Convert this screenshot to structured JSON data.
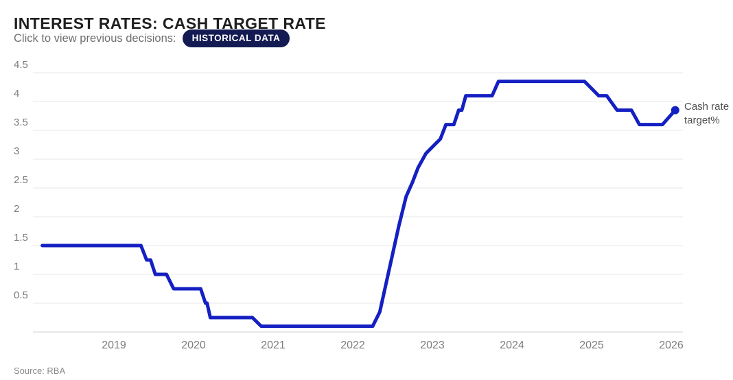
{
  "header": {
    "title": "INTEREST RATES: CASH TARGET RATE",
    "subtitle": "Click to view previous decisions:",
    "button_label": "HISTORICAL DATA"
  },
  "footer": {
    "source": "Source: RBA"
  },
  "colors": {
    "line": "#1520c2",
    "pill_bg": "#131b52",
    "grid": "#e7e7e7",
    "axis": "#cfcfcf",
    "tick_text": "#7d7d7d"
  },
  "chart_data": {
    "type": "line",
    "title": "INTEREST RATES: CASH TARGET RATE",
    "xlabel": "",
    "ylabel": "",
    "x_tick_labels": [
      "2019",
      "2020",
      "2021",
      "2022",
      "2023",
      "2024",
      "2025",
      "2026"
    ],
    "y_tick_labels": [
      "4.5",
      "4",
      "3.5",
      "3",
      "2.5",
      "2",
      "1.5",
      "1",
      "0.5"
    ],
    "xlim": [
      2018.05,
      2026.3
    ],
    "ylim": [
      0,
      4.7
    ],
    "grid": "horizontal-only",
    "legend_position": "right-of-last-point",
    "series": [
      {
        "name": "Cash rate target%",
        "color": "#1520c2",
        "points": [
          [
            2018.1,
            1.5
          ],
          [
            2019.34,
            1.5
          ],
          [
            2019.41,
            1.25
          ],
          [
            2019.46,
            1.25
          ],
          [
            2019.52,
            1.0
          ],
          [
            2019.66,
            1.0
          ],
          [
            2019.75,
            0.75
          ],
          [
            2020.09,
            0.75
          ],
          [
            2020.15,
            0.5
          ],
          [
            2020.17,
            0.5
          ],
          [
            2020.21,
            0.25
          ],
          [
            2020.74,
            0.25
          ],
          [
            2020.85,
            0.1
          ],
          [
            2022.25,
            0.1
          ],
          [
            2022.34,
            0.35
          ],
          [
            2022.42,
            0.85
          ],
          [
            2022.5,
            1.35
          ],
          [
            2022.58,
            1.85
          ],
          [
            2022.67,
            2.35
          ],
          [
            2022.75,
            2.6
          ],
          [
            2022.82,
            2.85
          ],
          [
            2022.92,
            3.1
          ],
          [
            2023.1,
            3.35
          ],
          [
            2023.17,
            3.6
          ],
          [
            2023.27,
            3.6
          ],
          [
            2023.33,
            3.85
          ],
          [
            2023.37,
            3.85
          ],
          [
            2023.42,
            4.1
          ],
          [
            2023.75,
            4.1
          ],
          [
            2023.83,
            4.35
          ],
          [
            2024.91,
            4.35
          ],
          [
            2025.09,
            4.1
          ],
          [
            2025.19,
            4.1
          ],
          [
            2025.32,
            3.85
          ],
          [
            2025.5,
            3.85
          ],
          [
            2025.6,
            3.6
          ],
          [
            2025.89,
            3.6
          ],
          [
            2026.05,
            3.85
          ]
        ],
        "end_dot": [
          2026.05,
          3.85
        ]
      }
    ]
  }
}
